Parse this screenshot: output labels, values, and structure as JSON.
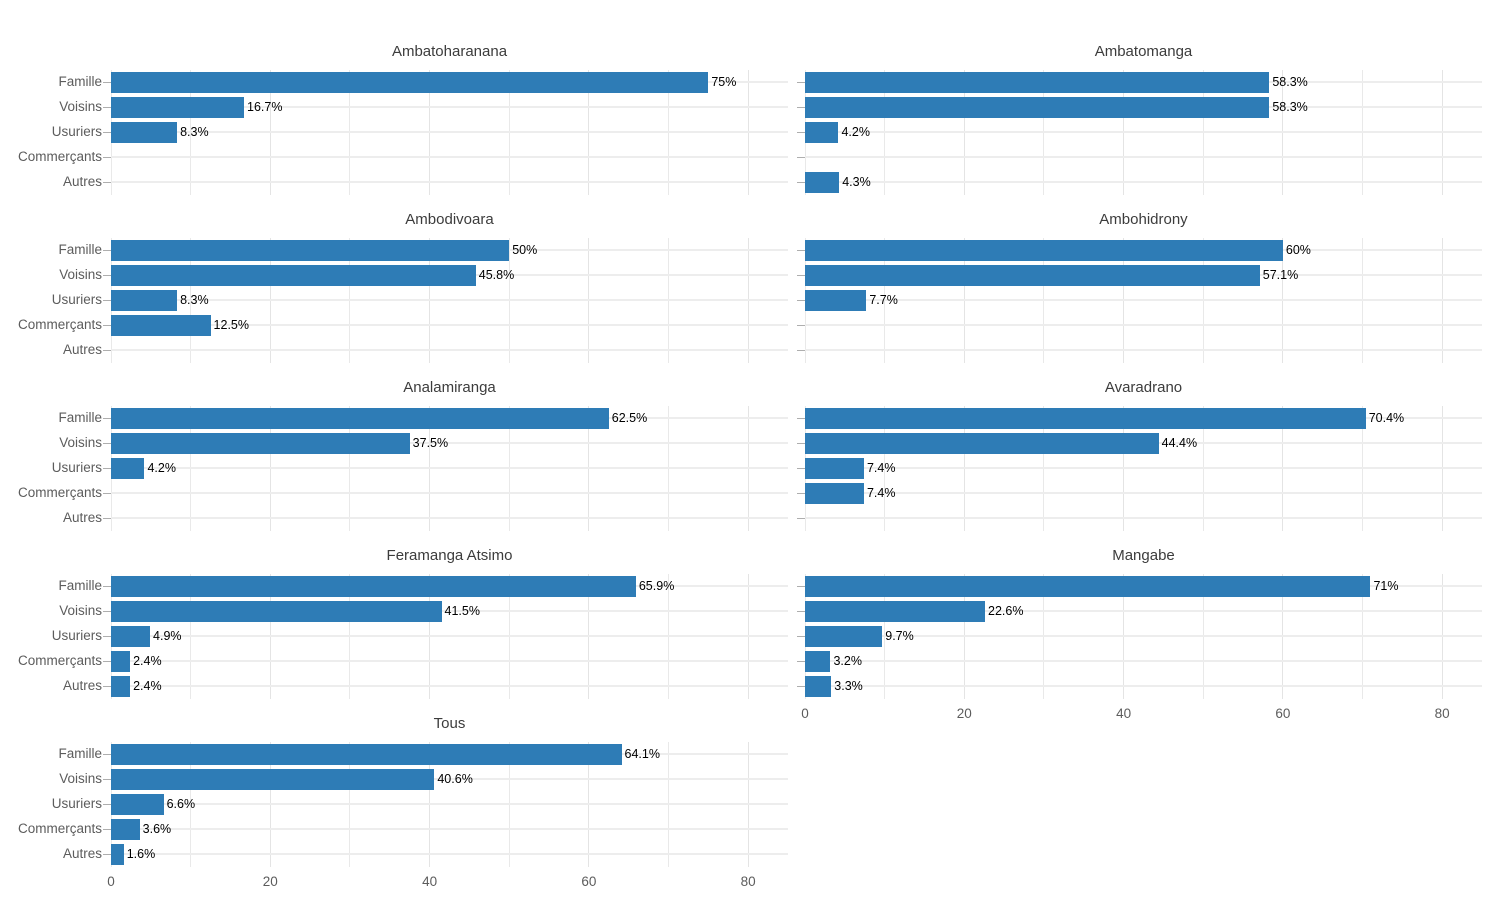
{
  "chart_data": {
    "type": "bar",
    "orientation": "horizontal",
    "title": "",
    "xlabel": "",
    "ylabel": "",
    "bar_color": "#2E7CB6",
    "grid": true,
    "x_ticks": [
      0,
      20,
      40,
      60,
      80
    ],
    "x_minor_step": 10,
    "xlim": [
      0,
      85
    ],
    "categories": [
      "Famille",
      "Voisins",
      "Usuriers",
      "Commerçants",
      "Autres"
    ],
    "facets": [
      {
        "title": "Ambatoharanana",
        "values": [
          75,
          16.7,
          8.3,
          0,
          0
        ],
        "labels": [
          "75%",
          "16.7%",
          "8.3%",
          "",
          ""
        ]
      },
      {
        "title": "Ambatomanga",
        "values": [
          58.3,
          58.3,
          4.2,
          0,
          4.3
        ],
        "labels": [
          "58.3%",
          "58.3%",
          "4.2%",
          "",
          "4.3%"
        ]
      },
      {
        "title": "Ambodivoara",
        "values": [
          50,
          45.8,
          8.3,
          12.5,
          0
        ],
        "labels": [
          "50%",
          "45.8%",
          "8.3%",
          "12.5%",
          ""
        ]
      },
      {
        "title": "Ambohidrony",
        "values": [
          60,
          57.1,
          7.7,
          0,
          0
        ],
        "labels": [
          "60%",
          "57.1%",
          "7.7%",
          "",
          ""
        ]
      },
      {
        "title": "Analamiranga",
        "values": [
          62.5,
          37.5,
          4.2,
          0,
          0
        ],
        "labels": [
          "62.5%",
          "37.5%",
          "4.2%",
          "",
          ""
        ]
      },
      {
        "title": "Avaradrano",
        "values": [
          70.4,
          44.4,
          7.4,
          7.4,
          0
        ],
        "labels": [
          "70.4%",
          "44.4%",
          "7.4%",
          "7.4%",
          ""
        ]
      },
      {
        "title": "Feramanga Atsimo",
        "values": [
          65.9,
          41.5,
          4.9,
          2.4,
          2.4
        ],
        "labels": [
          "65.9%",
          "41.5%",
          "4.9%",
          "2.4%",
          "2.4%"
        ]
      },
      {
        "title": "Mangabe",
        "values": [
          71,
          22.6,
          9.7,
          3.2,
          3.3
        ],
        "labels": [
          "71%",
          "22.6%",
          "9.7%",
          "3.2%",
          "3.3%"
        ]
      },
      {
        "title": "Tous",
        "values": [
          64.1,
          40.6,
          6.6,
          3.6,
          1.6
        ],
        "labels": [
          "64.1%",
          "40.6%",
          "6.6%",
          "3.6%",
          "1.6%"
        ]
      }
    ]
  }
}
